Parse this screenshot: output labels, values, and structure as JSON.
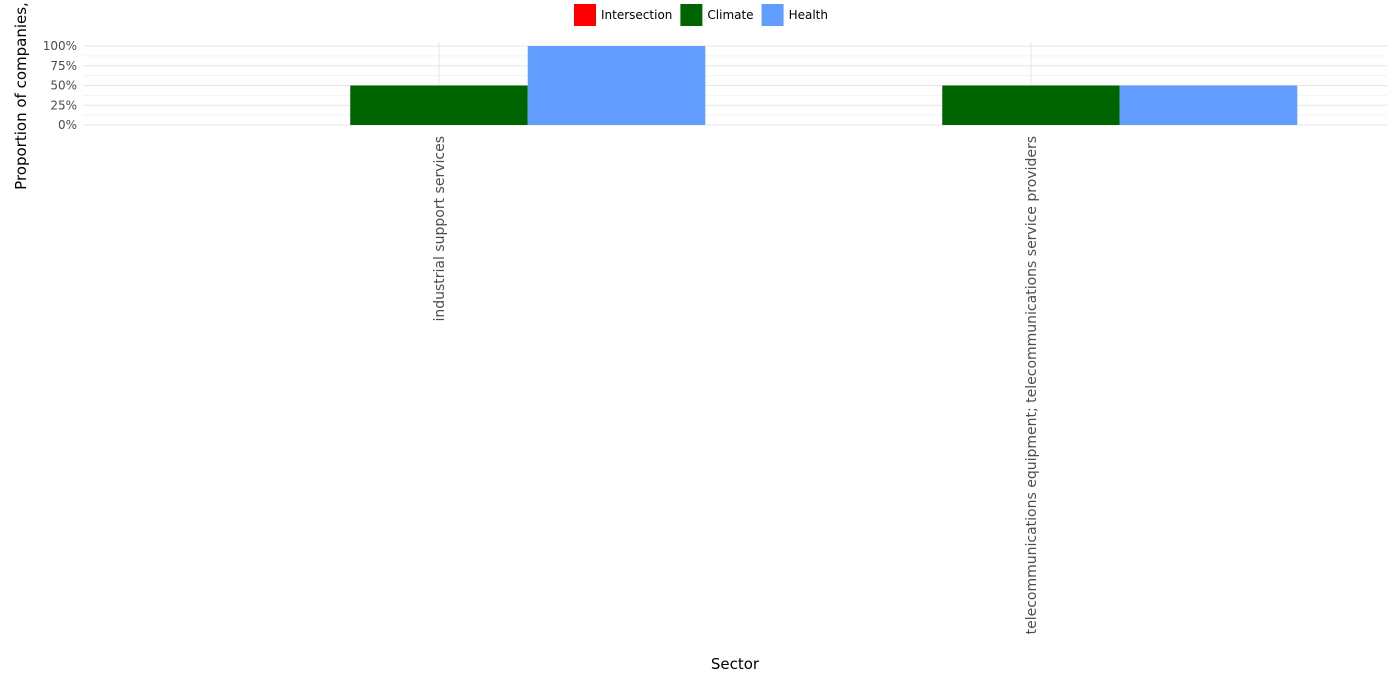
{
  "chart_data": {
    "type": "bar",
    "xlabel": "Sector",
    "ylabel": "Proportion of companies,",
    "categories": [
      "industrial support services",
      "telecommunications equipment; telecommunications service providers"
    ],
    "series": [
      {
        "name": "Intersection",
        "color": "#ff0000",
        "values": [
          0,
          0
        ]
      },
      {
        "name": "Climate",
        "color": "#006400",
        "values": [
          0.5,
          0.5
        ]
      },
      {
        "name": "Health",
        "color": "#619cff",
        "values": [
          1.0,
          0.5
        ]
      }
    ],
    "ylim": [
      0,
      1
    ],
    "y_ticks": [
      0,
      0.25,
      0.5,
      0.75,
      1.0
    ],
    "y_tick_labels": [
      "0%",
      "25%",
      "50%",
      "75%",
      "100%"
    ],
    "legend_position": "top",
    "grid": true
  }
}
